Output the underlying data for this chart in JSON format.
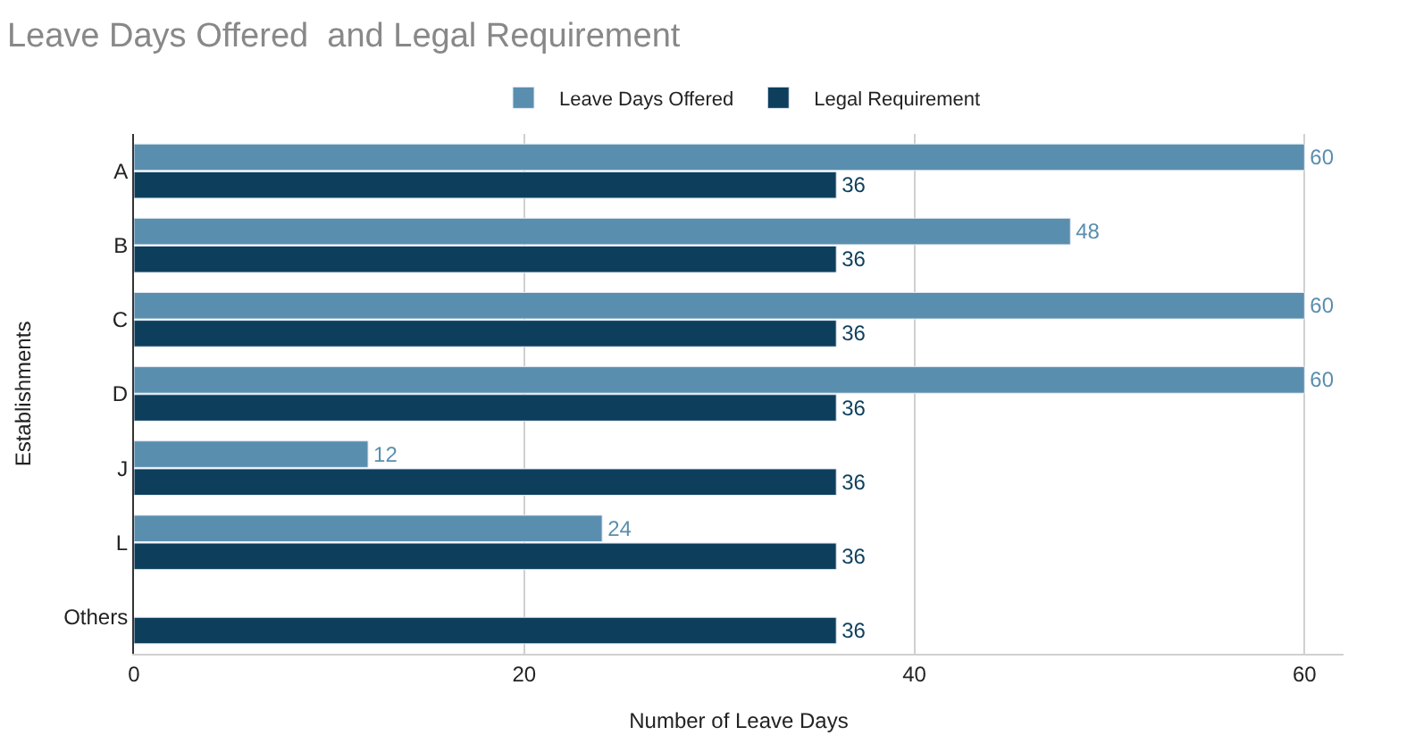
{
  "chart_data": {
    "type": "bar",
    "orientation": "horizontal",
    "title": "Leave Days Offered  and Legal Requirement",
    "xlabel": "Number of Leave Days",
    "ylabel": "Establishments",
    "categories": [
      "A",
      "B",
      "C",
      "D",
      "J",
      "L",
      "Others"
    ],
    "series": [
      {
        "name": "Leave Days Offered",
        "color": "#5a8eae",
        "values": [
          60,
          48,
          60,
          60,
          12,
          24,
          null
        ],
        "value_labels": [
          "60",
          "48",
          "60",
          "60",
          "12",
          "24",
          null
        ]
      },
      {
        "name": "Legal Requirement",
        "color": "#0d3f5d",
        "values": [
          36,
          36,
          36,
          36,
          36,
          36,
          36
        ],
        "value_labels": [
          "36",
          "36",
          "36",
          "36",
          "36",
          "36",
          "36"
        ]
      }
    ],
    "xlim": [
      0,
      62
    ],
    "xticks": [
      0,
      20,
      40,
      60
    ],
    "grid": "x",
    "legend": "top"
  }
}
